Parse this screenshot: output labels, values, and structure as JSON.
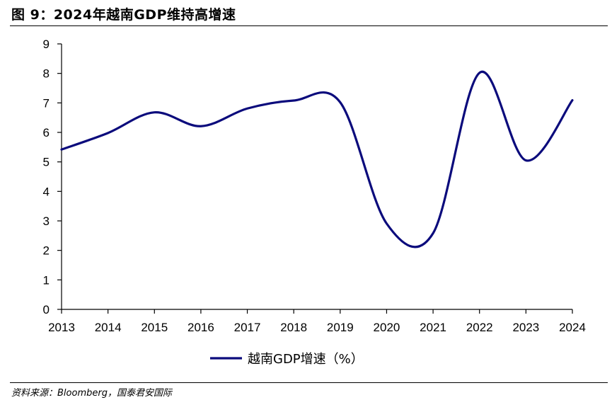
{
  "figure": {
    "title": "图 9：2024年越南GDP维持高增速",
    "source": "资料来源：Bloomberg，国泰君安国际"
  },
  "chart_data": {
    "type": "line",
    "x": [
      "2013",
      "2014",
      "2015",
      "2016",
      "2017",
      "2018",
      "2019",
      "2020",
      "2021",
      "2022",
      "2023",
      "2024"
    ],
    "series": [
      {
        "name": "越南GDP增速（%）",
        "values": [
          5.42,
          5.98,
          6.68,
          6.21,
          6.81,
          7.08,
          7.02,
          2.91,
          2.58,
          8.02,
          5.05,
          7.09
        ],
        "color": "#0b0b7c"
      }
    ],
    "ylim": [
      0,
      9
    ],
    "yticks": [
      "0",
      "1",
      "2",
      "3",
      "4",
      "5",
      "6",
      "7",
      "8",
      "9"
    ],
    "grid": false,
    "legend": "bottom-center",
    "smooth": true
  }
}
